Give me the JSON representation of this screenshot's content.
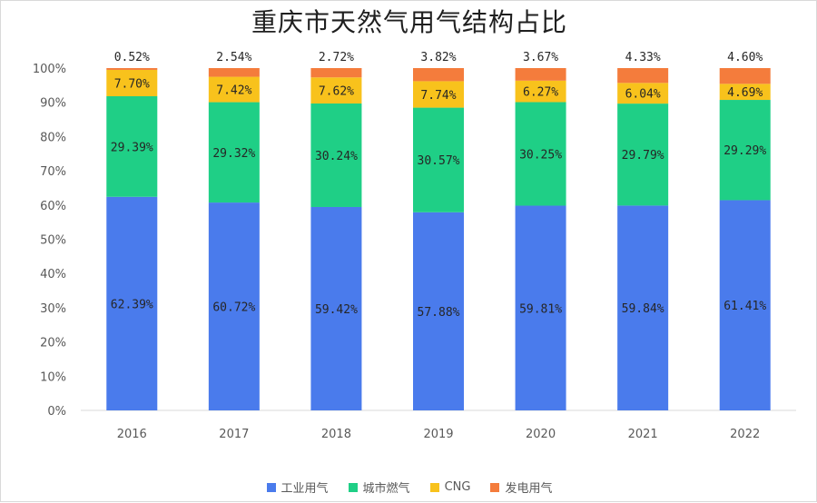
{
  "chart_data": {
    "type": "bar",
    "stacked": true,
    "title": "重庆市天然气用气结构占比",
    "categories": [
      "2016",
      "2017",
      "2018",
      "2019",
      "2020",
      "2021",
      "2022"
    ],
    "ylim": [
      0,
      100
    ],
    "yticks": [
      "0%",
      "10%",
      "20%",
      "30%",
      "40%",
      "50%",
      "60%",
      "70%",
      "80%",
      "90%",
      "100%"
    ],
    "legend_position": "bottom",
    "grid": false,
    "series": [
      {
        "name": "工业用气",
        "color": "#4a7bec",
        "values": [
          62.39,
          60.72,
          59.42,
          57.88,
          59.81,
          59.84,
          61.41
        ],
        "labels": [
          "62.39%",
          "60.72%",
          "59.42%",
          "57.88%",
          "59.81%",
          "59.84%",
          "61.41%"
        ]
      },
      {
        "name": "城市燃气",
        "color": "#1fcf86",
        "values": [
          29.39,
          29.32,
          30.24,
          30.57,
          30.25,
          29.79,
          29.29
        ],
        "labels": [
          "29.39%",
          "29.32%",
          "30.24%",
          "30.57%",
          "30.25%",
          "29.79%",
          "29.29%"
        ]
      },
      {
        "name": "CNG",
        "color": "#f8c21c",
        "values": [
          7.7,
          7.42,
          7.62,
          7.74,
          6.27,
          6.04,
          4.69
        ],
        "labels": [
          "7.70%",
          "7.42%",
          "7.62%",
          "7.74%",
          "6.27%",
          "6.04%",
          "4.69%"
        ]
      },
      {
        "name": "发电用气",
        "color": "#f47c3c",
        "values": [
          0.52,
          2.54,
          2.72,
          3.82,
          3.67,
          4.33,
          4.6
        ],
        "labels": [
          "0.52%",
          "2.54%",
          "2.72%",
          "3.82%",
          "3.67%",
          "4.33%",
          "4.60%"
        ]
      }
    ]
  }
}
